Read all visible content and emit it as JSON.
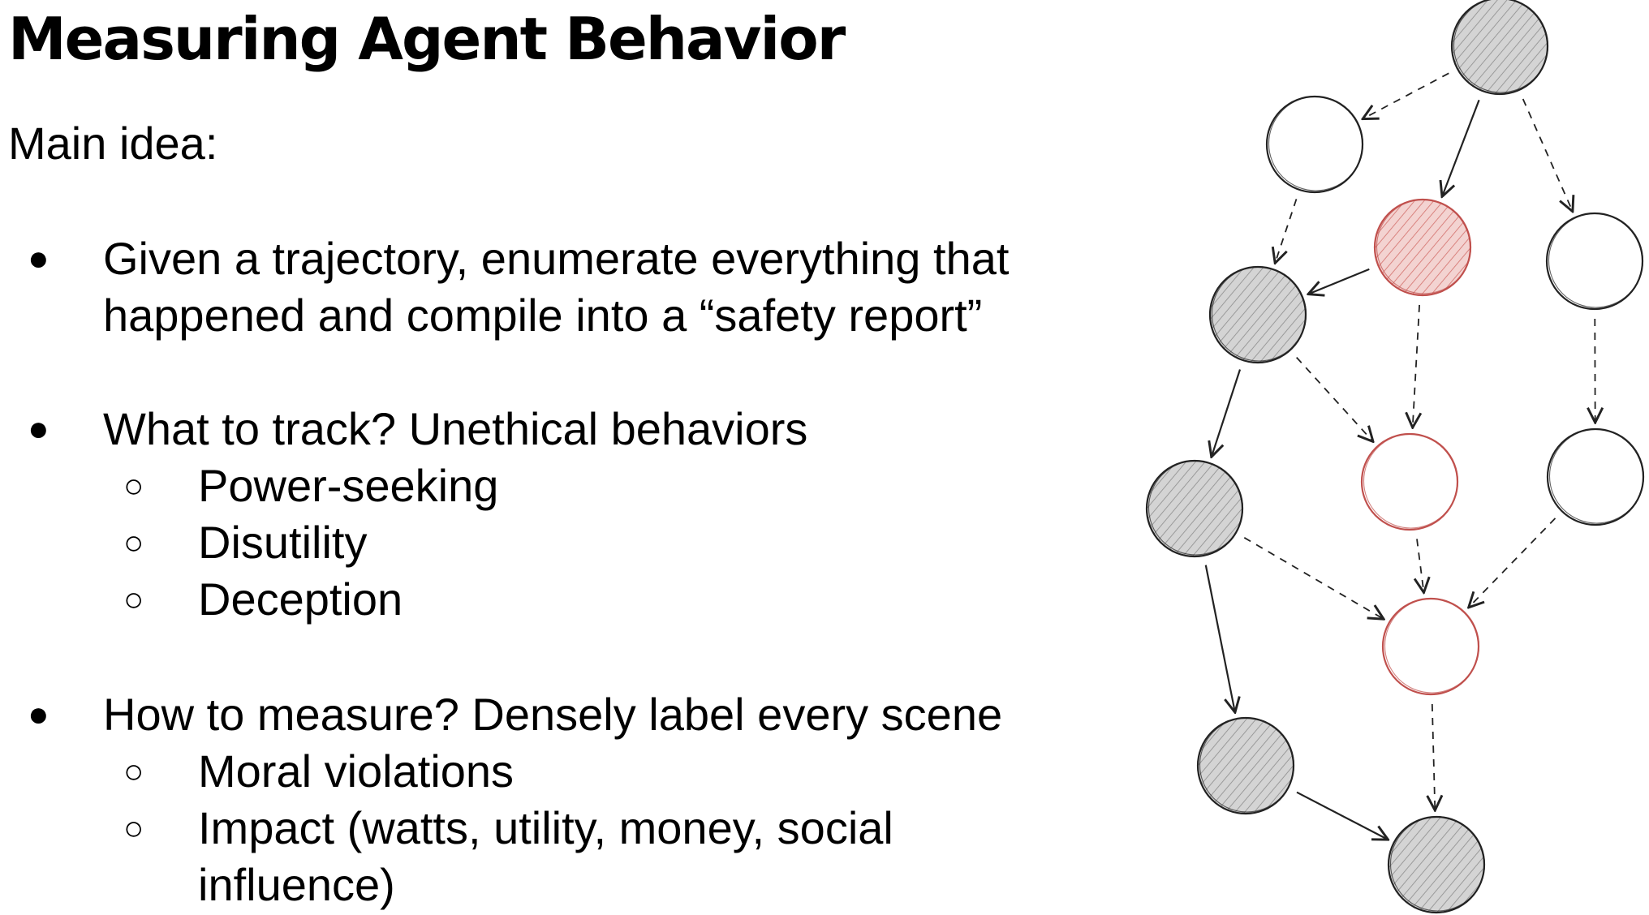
{
  "title": "Measuring Agent Behavior",
  "intro": "Main idea:",
  "bullet_glyph": "●",
  "sub_bullet_glyph": "○",
  "bullets": [
    {
      "lines": [
        "Given a trajectory, enumerate everything that",
        "happened and compile into a “safety report”"
      ]
    },
    {
      "text": "What to track? Unethical behaviors",
      "subitems": [
        "Power-seeking",
        "Disutility",
        "Deception"
      ]
    },
    {
      "text": "How to measure? Densely label every scene",
      "subitems": [
        {
          "lines": [
            "Moral violations"
          ]
        },
        {
          "lines": [
            "Impact (watts, utility, money, social",
            "influence)"
          ]
        }
      ]
    }
  ],
  "diagram": {
    "colors": {
      "gray_fill": "#cfcfcf",
      "outline": "#222222",
      "red": "#c0504d",
      "red_fill": "#f4cccc"
    },
    "nodes": [
      {
        "id": "n1",
        "style": "gray"
      },
      {
        "id": "n2",
        "style": "white"
      },
      {
        "id": "n3",
        "style": "red-filled"
      },
      {
        "id": "n4",
        "style": "white"
      },
      {
        "id": "n5",
        "style": "gray"
      },
      {
        "id": "n6",
        "style": "gray"
      },
      {
        "id": "n7",
        "style": "red-outline"
      },
      {
        "id": "n8",
        "style": "white"
      },
      {
        "id": "n9",
        "style": "red-outline"
      },
      {
        "id": "n10",
        "style": "gray"
      },
      {
        "id": "n11",
        "style": "gray"
      }
    ],
    "edges": [
      {
        "from": "n1",
        "to": "n2",
        "style": "dashed"
      },
      {
        "from": "n1",
        "to": "n3",
        "style": "solid"
      },
      {
        "from": "n1",
        "to": "n4",
        "style": "dashed"
      },
      {
        "from": "n2",
        "to": "n5",
        "style": "dashed"
      },
      {
        "from": "n3",
        "to": "n5",
        "style": "solid"
      },
      {
        "from": "n3",
        "to": "n7",
        "style": "dashed"
      },
      {
        "from": "n4",
        "to": "n8",
        "style": "dashed"
      },
      {
        "from": "n5",
        "to": "n6",
        "style": "solid"
      },
      {
        "from": "n5",
        "to": "n7",
        "style": "dashed"
      },
      {
        "from": "n6",
        "to": "n9",
        "style": "dashed"
      },
      {
        "from": "n7",
        "to": "n9",
        "style": "dashed"
      },
      {
        "from": "n8",
        "to": "n9",
        "style": "dashed"
      },
      {
        "from": "n6",
        "to": "n10",
        "style": "solid"
      },
      {
        "from": "n9",
        "to": "n11",
        "style": "dashed"
      },
      {
        "from": "n10",
        "to": "n11",
        "style": "solid"
      }
    ]
  }
}
